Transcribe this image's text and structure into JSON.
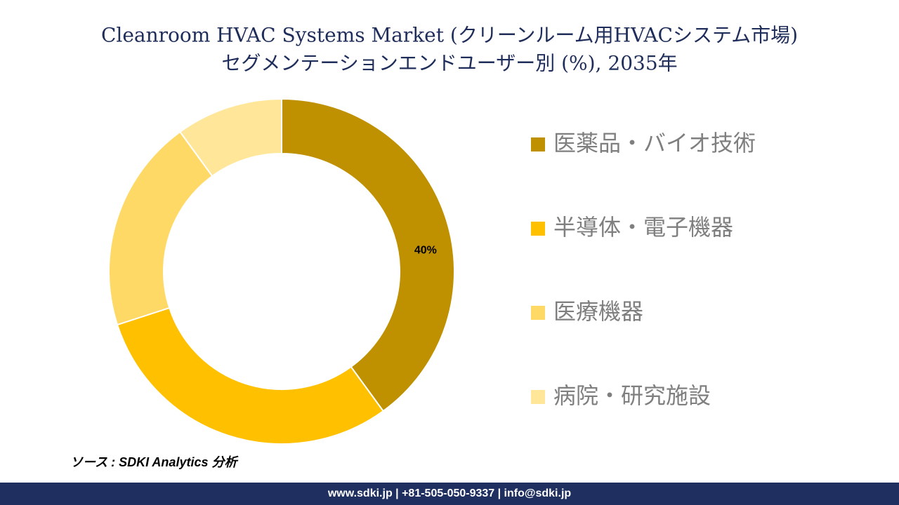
{
  "chart_data": {
    "type": "donut",
    "title": [
      "Cleanroom HVAC Systems Market (クリーンルーム用HVACシステム市場)",
      "セグメンテーションエンドユーザー別 (%), 2035年"
    ],
    "categories": [
      "医薬品・バイオ技術",
      "半導体・電子機器",
      "医療機器",
      "病院・研究施設"
    ],
    "values": [
      40,
      30,
      20,
      10
    ],
    "value_labels": [
      "40%",
      null,
      null,
      null
    ],
    "colors": [
      "#bf9000",
      "#ffc000",
      "#ffd966",
      "#ffe699"
    ],
    "legend": "right"
  },
  "source": "ソース : SDKI Analytics 分析",
  "footer": "www.sdki.jp | +81-505-050-9337 | info@sdki.jp"
}
